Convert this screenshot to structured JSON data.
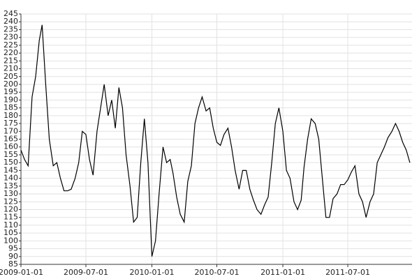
{
  "chart_data": {
    "type": "line",
    "color": "#000000",
    "grid": true,
    "x": [
      "2009-01-01",
      "2009-01-11",
      "2009-01-21",
      "2009-02-01",
      "2009-02-11",
      "2009-02-21",
      "2009-03-01",
      "2009-03-11",
      "2009-03-21",
      "2009-04-01",
      "2009-04-11",
      "2009-04-21",
      "2009-05-01",
      "2009-05-11",
      "2009-05-21",
      "2009-06-01",
      "2009-06-11",
      "2009-06-21",
      "2009-07-01",
      "2009-07-11",
      "2009-07-21",
      "2009-08-01",
      "2009-08-11",
      "2009-08-21",
      "2009-09-01",
      "2009-09-11",
      "2009-09-21",
      "2009-10-01",
      "2009-10-11",
      "2009-10-21",
      "2009-11-01",
      "2009-11-11",
      "2009-11-21",
      "2009-12-01",
      "2009-12-11",
      "2009-12-21",
      "2010-01-01",
      "2010-01-11",
      "2010-01-21",
      "2010-02-01",
      "2010-02-11",
      "2010-02-21",
      "2010-03-01",
      "2010-03-11",
      "2010-03-21",
      "2010-04-01",
      "2010-04-11",
      "2010-04-21",
      "2010-05-01",
      "2010-05-11",
      "2010-05-21",
      "2010-06-01",
      "2010-06-11",
      "2010-06-21",
      "2010-07-01",
      "2010-07-11",
      "2010-07-21",
      "2010-08-01",
      "2010-08-11",
      "2010-08-21",
      "2010-09-01",
      "2010-09-11",
      "2010-09-21",
      "2010-10-01",
      "2010-10-11",
      "2010-10-21",
      "2010-11-01",
      "2010-11-11",
      "2010-11-21",
      "2010-12-01",
      "2010-12-11",
      "2010-12-21",
      "2011-01-01",
      "2011-01-11",
      "2011-01-21",
      "2011-02-01",
      "2011-02-11",
      "2011-02-21",
      "2011-03-01",
      "2011-03-11",
      "2011-03-21",
      "2011-04-01",
      "2011-04-11",
      "2011-04-21",
      "2011-05-01",
      "2011-05-11",
      "2011-05-21",
      "2011-06-01",
      "2011-06-11",
      "2011-06-21",
      "2011-07-01",
      "2011-07-11",
      "2011-07-21",
      "2011-08-01",
      "2011-08-11",
      "2011-08-21",
      "2011-09-01",
      "2011-09-11",
      "2011-09-21",
      "2011-10-01",
      "2011-10-11",
      "2011-10-21",
      "2011-11-01",
      "2011-11-11",
      "2011-11-21",
      "2011-12-01",
      "2011-12-11",
      "2011-12-21"
    ],
    "values": [
      158,
      152,
      148,
      192,
      205,
      228,
      238,
      200,
      165,
      148,
      150,
      140,
      132,
      132,
      133,
      140,
      150,
      170,
      168,
      152,
      142,
      170,
      185,
      200,
      180,
      190,
      172,
      198,
      185,
      155,
      135,
      112,
      115,
      150,
      178,
      150,
      90,
      100,
      130,
      160,
      150,
      152,
      143,
      128,
      117,
      112,
      138,
      148,
      175,
      185,
      192,
      183,
      185,
      172,
      163,
      161,
      168,
      172,
      160,
      145,
      133,
      145,
      145,
      133,
      126,
      120,
      117,
      123,
      128,
      150,
      175,
      185,
      170,
      145,
      140,
      125,
      120,
      126,
      147,
      165,
      178,
      175,
      165,
      140,
      115,
      115,
      127,
      130,
      136,
      136,
      139,
      144,
      148,
      130,
      125,
      115,
      125,
      130,
      150,
      155,
      160,
      166,
      170,
      175,
      170,
      163,
      158,
      150
    ],
    "xlim": [
      "2009-01-01",
      "2011-12-27"
    ],
    "xticks": [
      "2009-01-01",
      "2009-07-01",
      "2010-01-01",
      "2010-07-01",
      "2011-01-01",
      "2011-07-01"
    ],
    "ylim": [
      85,
      245
    ],
    "yticks": [
      85,
      90,
      95,
      100,
      105,
      110,
      115,
      120,
      125,
      130,
      135,
      140,
      145,
      150,
      155,
      160,
      165,
      170,
      175,
      180,
      185,
      190,
      195,
      200,
      205,
      210,
      215,
      220,
      225,
      230,
      235,
      240,
      245
    ]
  }
}
